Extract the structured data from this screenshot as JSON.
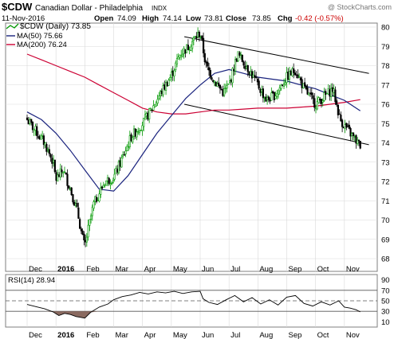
{
  "header": {
    "symbol": "$CDW",
    "name": "Canadian Dollar - Philadelphia",
    "exchange": "INDX",
    "watermark": "@ StockCharts.com",
    "date": "11-Nov-2016",
    "open_label": "Open",
    "open": "74.09",
    "high_label": "High",
    "high": "74.14",
    "low_label": "Low",
    "low": "73.81",
    "close_label": "Close",
    "close": "73.85",
    "chg_label": "Chg",
    "chg": "-0.42 (-0.57%)",
    "chg_direction": "down"
  },
  "legend": {
    "price": "$CDW (Daily) 73.85",
    "ma50": "MA(50) 75.66",
    "ma200": "MA(200) 76.24"
  },
  "rsi_legend": "RSI(14) 28.94",
  "colors": {
    "price_up": "#009900",
    "price_down": "#000000",
    "ma50": "#1a237e",
    "ma200": "#cc0033",
    "rsi_line": "#000000",
    "rsi_oversold_fill": "#8a6a60",
    "grid": "#d9d9d9",
    "chg_down": "#cc0000"
  },
  "x_labels": [
    "Dec",
    "2016",
    "Feb",
    "Mar",
    "Apr",
    "May",
    "Jun",
    "Jul",
    "Aug",
    "Sep",
    "Oct",
    "Nov"
  ],
  "price_ticks": [
    "80",
    "79",
    "78",
    "77",
    "76",
    "75",
    "74",
    "73",
    "72",
    "71",
    "70",
    "69",
    "68"
  ],
  "rsi_ticks": [
    "90",
    "70",
    "50",
    "30",
    "10"
  ],
  "chart_data": {
    "type": "candlestick",
    "x_axis": [
      "Dec",
      "2016",
      "Feb",
      "Mar",
      "Apr",
      "May",
      "Jun",
      "Jul",
      "Aug",
      "Sep",
      "Oct",
      "Nov"
    ],
    "price_ylim": [
      67.8,
      80.6
    ],
    "rsi_ylim": [
      0,
      100
    ],
    "grid": true,
    "price_series": [
      {
        "x": 0.0,
        "v": 75.2
      },
      {
        "x": 0.3,
        "v": 74.6
      },
      {
        "x": 0.6,
        "v": 74.0
      },
      {
        "x": 0.9,
        "v": 73.0
      },
      {
        "x": 1.0,
        "v": 72.1
      },
      {
        "x": 1.25,
        "v": 72.6
      },
      {
        "x": 1.5,
        "v": 71.6
      },
      {
        "x": 1.75,
        "v": 70.4
      },
      {
        "x": 1.9,
        "v": 69.2
      },
      {
        "x": 2.0,
        "v": 68.6
      },
      {
        "x": 2.1,
        "v": 69.4
      },
      {
        "x": 2.3,
        "v": 70.8
      },
      {
        "x": 2.5,
        "v": 71.4
      },
      {
        "x": 2.7,
        "v": 72.0
      },
      {
        "x": 3.0,
        "v": 72.2
      },
      {
        "x": 3.3,
        "v": 73.2
      },
      {
        "x": 3.6,
        "v": 74.3
      },
      {
        "x": 4.0,
        "v": 75.0
      },
      {
        "x": 4.3,
        "v": 75.7
      },
      {
        "x": 4.6,
        "v": 76.5
      },
      {
        "x": 5.0,
        "v": 77.5
      },
      {
        "x": 5.3,
        "v": 78.6
      },
      {
        "x": 5.6,
        "v": 79.0
      },
      {
        "x": 5.8,
        "v": 79.4
      },
      {
        "x": 6.0,
        "v": 79.7
      },
      {
        "x": 6.2,
        "v": 78.0
      },
      {
        "x": 6.5,
        "v": 77.2
      },
      {
        "x": 6.8,
        "v": 76.6
      },
      {
        "x": 7.0,
        "v": 77.0
      },
      {
        "x": 7.3,
        "v": 78.6
      },
      {
        "x": 7.6,
        "v": 78.0
      },
      {
        "x": 8.0,
        "v": 77.0
      },
      {
        "x": 8.3,
        "v": 76.2
      },
      {
        "x": 8.6,
        "v": 76.5
      },
      {
        "x": 9.0,
        "v": 77.4
      },
      {
        "x": 9.3,
        "v": 77.8
      },
      {
        "x": 9.6,
        "v": 76.8
      },
      {
        "x": 10.0,
        "v": 76.0
      },
      {
        "x": 10.3,
        "v": 76.4
      },
      {
        "x": 10.6,
        "v": 76.8
      },
      {
        "x": 10.85,
        "v": 75.2
      },
      {
        "x": 11.0,
        "v": 74.9
      },
      {
        "x": 11.2,
        "v": 74.5
      },
      {
        "x": 11.4,
        "v": 74.1
      },
      {
        "x": 11.55,
        "v": 73.85
      }
    ],
    "ma50_series": [
      {
        "x": 0.0,
        "v": 75.6
      },
      {
        "x": 0.5,
        "v": 75.2
      },
      {
        "x": 1.0,
        "v": 74.5
      },
      {
        "x": 1.5,
        "v": 73.6
      },
      {
        "x": 2.0,
        "v": 72.6
      },
      {
        "x": 2.5,
        "v": 71.6
      },
      {
        "x": 3.0,
        "v": 71.5
      },
      {
        "x": 3.5,
        "v": 72.3
      },
      {
        "x": 4.0,
        "v": 73.4
      },
      {
        "x": 4.5,
        "v": 74.5
      },
      {
        "x": 5.0,
        "v": 75.4
      },
      {
        "x": 5.5,
        "v": 76.3
      },
      {
        "x": 6.0,
        "v": 77.0
      },
      {
        "x": 6.5,
        "v": 77.6
      },
      {
        "x": 7.0,
        "v": 77.8
      },
      {
        "x": 7.5,
        "v": 77.6
      },
      {
        "x": 8.0,
        "v": 77.4
      },
      {
        "x": 8.5,
        "v": 77.3
      },
      {
        "x": 9.0,
        "v": 77.2
      },
      {
        "x": 9.5,
        "v": 77.0
      },
      {
        "x": 10.0,
        "v": 76.8
      },
      {
        "x": 10.5,
        "v": 76.5
      },
      {
        "x": 11.0,
        "v": 76.2
      },
      {
        "x": 11.55,
        "v": 75.66
      }
    ],
    "ma200_series": [
      {
        "x": 0.0,
        "v": 78.6
      },
      {
        "x": 0.5,
        "v": 78.3
      },
      {
        "x": 1.0,
        "v": 78.0
      },
      {
        "x": 1.5,
        "v": 77.7
      },
      {
        "x": 2.0,
        "v": 77.4
      },
      {
        "x": 2.5,
        "v": 77.0
      },
      {
        "x": 3.0,
        "v": 76.6
      },
      {
        "x": 3.5,
        "v": 76.2
      },
      {
        "x": 4.0,
        "v": 75.8
      },
      {
        "x": 4.5,
        "v": 75.6
      },
      {
        "x": 5.0,
        "v": 75.5
      },
      {
        "x": 5.5,
        "v": 75.5
      },
      {
        "x": 6.0,
        "v": 75.6
      },
      {
        "x": 6.5,
        "v": 75.7
      },
      {
        "x": 7.0,
        "v": 75.7
      },
      {
        "x": 7.5,
        "v": 75.75
      },
      {
        "x": 8.0,
        "v": 75.8
      },
      {
        "x": 8.5,
        "v": 75.8
      },
      {
        "x": 9.0,
        "v": 75.8
      },
      {
        "x": 9.5,
        "v": 75.85
      },
      {
        "x": 10.0,
        "v": 75.9
      },
      {
        "x": 10.5,
        "v": 76.0
      },
      {
        "x": 11.0,
        "v": 76.1
      },
      {
        "x": 11.55,
        "v": 76.24
      }
    ],
    "trend_lines": [
      {
        "x1": 5.45,
        "y1": 79.5,
        "x2": 11.85,
        "y2": 77.6
      },
      {
        "x1": 5.45,
        "y1": 76.0,
        "x2": 11.85,
        "y2": 73.9
      }
    ],
    "rsi_series": [
      {
        "x": 0.0,
        "v": 43
      },
      {
        "x": 0.3,
        "v": 39
      },
      {
        "x": 0.6,
        "v": 35
      },
      {
        "x": 0.9,
        "v": 29
      },
      {
        "x": 1.1,
        "v": 22
      },
      {
        "x": 1.3,
        "v": 26
      },
      {
        "x": 1.5,
        "v": 24
      },
      {
        "x": 1.7,
        "v": 20
      },
      {
        "x": 1.9,
        "v": 18
      },
      {
        "x": 2.0,
        "v": 17
      },
      {
        "x": 2.2,
        "v": 28
      },
      {
        "x": 2.5,
        "v": 38
      },
      {
        "x": 2.8,
        "v": 44
      },
      {
        "x": 3.0,
        "v": 52
      },
      {
        "x": 3.3,
        "v": 58
      },
      {
        "x": 3.6,
        "v": 61
      },
      {
        "x": 3.9,
        "v": 66
      },
      {
        "x": 4.2,
        "v": 63
      },
      {
        "x": 4.5,
        "v": 67
      },
      {
        "x": 4.8,
        "v": 65
      },
      {
        "x": 5.1,
        "v": 68
      },
      {
        "x": 5.4,
        "v": 64
      },
      {
        "x": 5.7,
        "v": 67
      },
      {
        "x": 6.0,
        "v": 68
      },
      {
        "x": 6.1,
        "v": 54
      },
      {
        "x": 6.3,
        "v": 47
      },
      {
        "x": 6.6,
        "v": 43
      },
      {
        "x": 6.9,
        "v": 52
      },
      {
        "x": 7.2,
        "v": 60
      },
      {
        "x": 7.5,
        "v": 48
      },
      {
        "x": 7.8,
        "v": 56
      },
      {
        "x": 8.1,
        "v": 44
      },
      {
        "x": 8.4,
        "v": 52
      },
      {
        "x": 8.7,
        "v": 42
      },
      {
        "x": 9.0,
        "v": 57
      },
      {
        "x": 9.3,
        "v": 60
      },
      {
        "x": 9.6,
        "v": 45
      },
      {
        "x": 9.9,
        "v": 40
      },
      {
        "x": 10.2,
        "v": 48
      },
      {
        "x": 10.5,
        "v": 42
      },
      {
        "x": 10.8,
        "v": 50
      },
      {
        "x": 11.0,
        "v": 38
      },
      {
        "x": 11.2,
        "v": 36
      },
      {
        "x": 11.4,
        "v": 33
      },
      {
        "x": 11.55,
        "v": 28.94
      }
    ],
    "rsi_levels": [
      70,
      50,
      30
    ]
  }
}
